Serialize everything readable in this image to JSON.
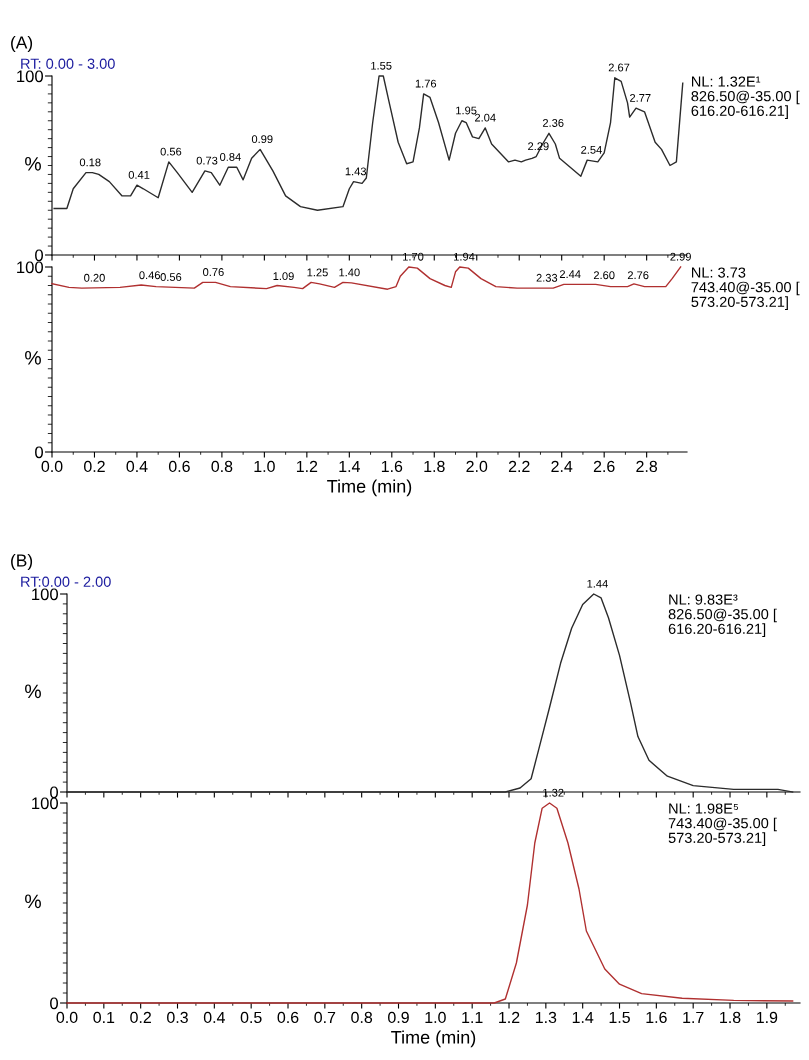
{
  "chart_data": [
    {
      "type": "line",
      "title": "(A)",
      "subtitle": "RT: 0.00 - 3.00",
      "ylabel": "%",
      "xlim": [
        0,
        2.99
      ],
      "ylim": [
        0,
        100
      ],
      "yticks": [
        0,
        100
      ],
      "xticks": [
        0,
        0.2,
        0.4,
        0.6,
        0.8,
        1.0,
        1.2,
        1.4,
        1.6,
        1.8,
        2.0,
        2.2,
        2.4,
        2.6,
        2.8
      ],
      "tick_labels": "y",
      "grid": false,
      "legend": false,
      "marker": "none",
      "line_style": "solid",
      "x": [
        0.01,
        0.07,
        0.1,
        0.16,
        0.19,
        0.22,
        0.27,
        0.33,
        0.37,
        0.4,
        0.43,
        0.5,
        0.55,
        0.59,
        0.66,
        0.72,
        0.75,
        0.79,
        0.83,
        0.87,
        0.9,
        0.94,
        0.98,
        1.04,
        1.1,
        1.17,
        1.25,
        1.37,
        1.4,
        1.42,
        1.46,
        1.48,
        1.51,
        1.54,
        1.56,
        1.59,
        1.63,
        1.67,
        1.7,
        1.73,
        1.75,
        1.78,
        1.82,
        1.87,
        1.9,
        1.93,
        1.95,
        1.98,
        2.01,
        2.04,
        2.07,
        2.11,
        2.15,
        2.18,
        2.21,
        2.23,
        2.26,
        2.28,
        2.31,
        2.34,
        2.37,
        2.39,
        2.44,
        2.49,
        2.52,
        2.57,
        2.6,
        2.63,
        2.65,
        2.68,
        2.71,
        2.72,
        2.75,
        2.79,
        2.84,
        2.87,
        2.91,
        2.94,
        2.97
      ],
      "series": [
        {
          "color": "#2b2b2b",
          "values": [
            26,
            26,
            37,
            46,
            46,
            45,
            41,
            33,
            33,
            39,
            37,
            32,
            52,
            46,
            35,
            47,
            46,
            39,
            49,
            49,
            42,
            54,
            59,
            47,
            33,
            27,
            25,
            27,
            37,
            41,
            40,
            43,
            74,
            100,
            100,
            84,
            63,
            51,
            52,
            71,
            90,
            88,
            74,
            53,
            68,
            75,
            74,
            66,
            65,
            71,
            62,
            57,
            52,
            53,
            52,
            53,
            54,
            55,
            62,
            68,
            62,
            54,
            49,
            44,
            53,
            52,
            57,
            74,
            99,
            97,
            85,
            77,
            82,
            80,
            63,
            59,
            50,
            52,
            96
          ]
        }
      ],
      "annotations": [
        "NL: 1.32E¹\n826.50@-35.00 [\n616.20-616.21]",
        {
          "text": "0.18",
          "x": 0.18,
          "y": 46
        },
        {
          "text": "0.41",
          "x": 0.41,
          "y": 39
        },
        {
          "text": "0.56",
          "x": 0.56,
          "y": 52
        },
        {
          "text": "0.73",
          "x": 0.73,
          "y": 47
        },
        {
          "text": "0.84",
          "x": 0.84,
          "y": 49
        },
        {
          "text": "0.99",
          "x": 0.99,
          "y": 59
        },
        {
          "text": "1.43",
          "x": 1.43,
          "y": 41
        },
        {
          "text": "1.55",
          "x": 1.55,
          "y": 100
        },
        {
          "text": "1.76",
          "x": 1.76,
          "y": 90
        },
        {
          "text": "1.95",
          "x": 1.95,
          "y": 75
        },
        {
          "text": "2.04",
          "x": 2.04,
          "y": 71
        },
        {
          "text": "2.29",
          "x": 2.29,
          "y": 55
        },
        {
          "text": "2.36",
          "x": 2.36,
          "y": 68
        },
        {
          "text": "2.54",
          "x": 2.54,
          "y": 53
        },
        {
          "text": "2.67",
          "x": 2.67,
          "y": 99
        },
        {
          "text": "2.77",
          "x": 2.77,
          "y": 82
        }
      ]
    },
    {
      "type": "line",
      "xlabel": "Time (min)",
      "ylabel": "%",
      "xlim": [
        0,
        2.99
      ],
      "ylim": [
        0,
        100
      ],
      "yticks": [
        0,
        100
      ],
      "xticks": [
        {
          "value": 0,
          "label": "0.0"
        },
        0.2,
        0.4,
        0.6,
        0.8,
        {
          "value": 1.0,
          "label": "1.0"
        },
        1.2,
        1.4,
        1.6,
        1.8,
        {
          "value": 2.0,
          "label": "2.0"
        },
        2.2,
        2.4,
        2.6,
        2.8
      ],
      "grid": false,
      "legend": false,
      "marker": "none",
      "line_style": "solid",
      "x": [
        0,
        0.08,
        0.14,
        0.32,
        0.42,
        0.49,
        0.67,
        0.71,
        0.77,
        0.84,
        1.01,
        1.06,
        1.14,
        1.18,
        1.22,
        1.26,
        1.33,
        1.37,
        1.41,
        1.58,
        1.62,
        1.64,
        1.68,
        1.72,
        1.78,
        1.85,
        1.88,
        1.9,
        1.92,
        1.96,
        2.02,
        2.09,
        2.19,
        2.36,
        2.41,
        2.56,
        2.63,
        2.71,
        2.74,
        2.79,
        2.89,
        2.92,
        2.96
      ],
      "series": [
        {
          "color": "#b03030",
          "values": [
            91,
            89,
            88.6,
            89,
            90.3,
            89.4,
            88.6,
            91.7,
            91.7,
            89.4,
            88.3,
            90,
            89,
            88.3,
            91.7,
            90.9,
            89,
            91.7,
            91.4,
            88,
            89.4,
            95,
            100,
            99.4,
            93.7,
            90,
            89,
            97.4,
            100,
            99.4,
            93.7,
            89.4,
            88.6,
            88.6,
            90.6,
            90.6,
            89.4,
            89.4,
            90.9,
            89.4,
            89.4,
            93.7,
            100
          ]
        }
      ],
      "annotations": [
        "NL: 3.73\n743.40@-35.00 [\n573.20-573.21]",
        {
          "text": "0.20",
          "x": 0.2,
          "y": 88.6
        },
        {
          "text": "0.46",
          "x": 0.46,
          "y": 90
        },
        {
          "text": "0.56",
          "x": 0.56,
          "y": 89
        },
        {
          "text": "0.76",
          "x": 0.76,
          "y": 91.7
        },
        {
          "text": "1.09",
          "x": 1.09,
          "y": 89.5
        },
        {
          "text": "1.25",
          "x": 1.25,
          "y": 91.5
        },
        {
          "text": "1.40",
          "x": 1.4,
          "y": 91.5
        },
        {
          "text": "1.70",
          "x": 1.7,
          "y": 100
        },
        {
          "text": "1.94",
          "x": 1.94,
          "y": 100
        },
        {
          "text": "2.33",
          "x": 2.33,
          "y": 88.6
        },
        {
          "text": "2.44",
          "x": 2.44,
          "y": 90.6
        },
        {
          "text": "2.60",
          "x": 2.6,
          "y": 90
        },
        {
          "text": "2.76",
          "x": 2.76,
          "y": 90
        },
        {
          "text": "2.99",
          "x": 2.96,
          "y": 100
        }
      ]
    },
    {
      "type": "line",
      "title": "(B)",
      "subtitle": "RT:0.00 - 2.00",
      "ylabel": "%",
      "xlim": [
        0,
        1.99
      ],
      "ylim": [
        0,
        100
      ],
      "yticks": [
        0,
        100
      ],
      "xticks": [
        0,
        0.1,
        0.2,
        0.3,
        0.4,
        0.5,
        0.6,
        0.7,
        0.8,
        0.9,
        1.0,
        1.1,
        1.2,
        1.3,
        1.4,
        1.5,
        1.6,
        1.7,
        1.8,
        1.9
      ],
      "tick_labels": "y",
      "grid": false,
      "legend": false,
      "marker": "none",
      "line_style": "solid",
      "x": [
        0,
        0.5,
        1.0,
        1.19,
        1.23,
        1.26,
        1.28,
        1.31,
        1.34,
        1.37,
        1.4,
        1.43,
        1.45,
        1.47,
        1.5,
        1.53,
        1.55,
        1.58,
        1.63,
        1.7,
        1.81,
        1.93,
        1.97
      ],
      "series": [
        {
          "color": "#2b2b2b",
          "values": [
            0,
            0,
            0,
            0,
            2,
            6.7,
            21,
            42.7,
            65,
            82.7,
            94.7,
            100,
            98,
            88,
            69,
            45,
            28,
            16,
            8,
            3.2,
            1.3,
            1.3,
            0
          ]
        }
      ],
      "annotations": [
        "NL: 9.83E³\n826.50@-35.00 [\n616.20-616.21]",
        {
          "text": "1.44",
          "x": 1.44,
          "y": 100
        }
      ]
    },
    {
      "type": "line",
      "xlabel": "Time (min)",
      "ylabel": "%",
      "xlim": [
        0,
        1.99
      ],
      "ylim": [
        0,
        100
      ],
      "yticks": [
        0,
        100
      ],
      "xticks": [
        {
          "value": 0,
          "label": "0.0"
        },
        0.1,
        0.2,
        0.3,
        0.4,
        0.5,
        0.6,
        0.7,
        0.8,
        0.9,
        {
          "value": 1.0,
          "label": "1.0"
        },
        1.1,
        1.2,
        1.3,
        1.4,
        1.5,
        1.6,
        1.7,
        1.8,
        1.9
      ],
      "grid": false,
      "legend": false,
      "marker": "none",
      "line_style": "solid",
      "x": [
        0,
        0.5,
        1.0,
        1.16,
        1.19,
        1.22,
        1.25,
        1.27,
        1.29,
        1.31,
        1.33,
        1.36,
        1.39,
        1.41,
        1.46,
        1.5,
        1.56,
        1.67,
        1.81,
        1.97
      ],
      "series": [
        {
          "color": "#b03030",
          "values": [
            0,
            0,
            0,
            0,
            2,
            20,
            49,
            80,
            97.4,
            100,
            97.4,
            80,
            57,
            36,
            17,
            9.4,
            4.7,
            2.4,
            1.3,
            1
          ]
        }
      ],
      "annotations": [
        "NL: 1.98E⁵\n743.40@-35.00 [\n573.20-573.21]",
        {
          "text": "1.32",
          "x": 1.32,
          "y": 100
        }
      ]
    }
  ]
}
